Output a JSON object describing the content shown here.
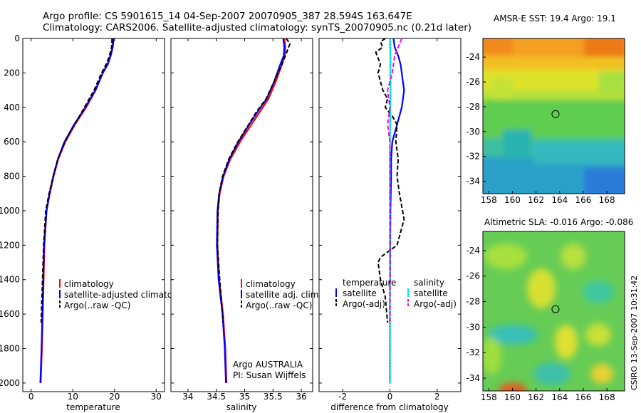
{
  "figure": {
    "title_line1": "Argo profile: CS 5901615_14 04-Sep-2007 20070905_387 28.594S 163.647E",
    "title_line2": "Climatology: CARS2006. Satellite-adjusted climatology: synTS_20070905.nc (0.21d later)",
    "credit": "CSIRO 13-Sep-2007 10:31:42"
  },
  "colors": {
    "climatology": "#ff0000",
    "satellite": "#0000ff",
    "argo": "#000000",
    "satellite_diff_salinity": "#00e5e5",
    "argo_diff_salinity": "#ff00ff"
  },
  "chart_data": [
    {
      "type": "line",
      "id": "temperature",
      "xlabel": "temperature",
      "ylabel": "",
      "xlim": [
        -2,
        32
      ],
      "ylim": [
        2050,
        0
      ],
      "xticks": [
        0,
        10,
        20,
        30
      ],
      "yticks": [
        0,
        200,
        400,
        600,
        800,
        1000,
        1200,
        1400,
        1600,
        1800,
        2000
      ],
      "legend": {
        "position": "bottom-right",
        "entries": [
          "climatology",
          "satellite-adjusted climatology",
          "Argo(..raw -QC)"
        ]
      },
      "series": [
        {
          "name": "climatology",
          "color": "#ff0000",
          "style": "solid",
          "x": [
            19.6,
            19.5,
            19.0,
            18.3,
            17.2,
            15.5,
            13.2,
            10.5,
            8.2,
            6.5,
            5.4,
            4.5,
            3.7,
            3.2,
            2.9,
            2.6,
            2.3
          ],
          "y": [
            0,
            50,
            100,
            150,
            200,
            300,
            400,
            500,
            600,
            700,
            800,
            900,
            1000,
            1200,
            1500,
            1800,
            2000
          ]
        },
        {
          "name": "satellite-adjusted climatology",
          "color": "#0000ff",
          "style": "solid",
          "x": [
            19.8,
            19.6,
            19.1,
            18.4,
            17.2,
            15.4,
            13.0,
            10.3,
            8.0,
            6.4,
            5.3,
            4.4,
            3.7,
            3.1,
            2.8,
            2.5,
            2.2
          ],
          "y": [
            0,
            50,
            100,
            150,
            200,
            300,
            400,
            500,
            600,
            700,
            800,
            900,
            1000,
            1200,
            1500,
            1800,
            2000
          ]
        },
        {
          "name": "Argo(..raw -QC)",
          "color": "#000000",
          "style": "dash",
          "x": [
            19.4,
            19.3,
            18.8,
            18.0,
            16.9,
            15.1,
            12.8,
            10.4,
            8.1,
            6.4,
            5.3,
            4.3,
            3.5,
            3.0,
            2.6,
            2.4
          ],
          "y": [
            0,
            50,
            100,
            150,
            200,
            300,
            400,
            500,
            600,
            700,
            800,
            900,
            1000,
            1200,
            1500,
            1650
          ]
        }
      ]
    },
    {
      "type": "line",
      "id": "salinity",
      "xlabel": "salinity",
      "xlim": [
        33.7,
        36.2
      ],
      "ylim": [
        2050,
        0
      ],
      "xticks": [
        34,
        34.5,
        35,
        35.5,
        36
      ],
      "legend": {
        "position": "bottom-right",
        "entries": [
          "climatology",
          "satellite adj. clim.",
          "Argo(..raw -QC)"
        ]
      },
      "annotation_lines": [
        "Argo AUSTRALIA",
        "PI: Susan Wijffels"
      ],
      "series": [
        {
          "name": "climatology",
          "color": "#ff0000",
          "style": "solid",
          "x": [
            35.7,
            35.72,
            35.71,
            35.66,
            35.55,
            35.42,
            35.28,
            35.12,
            34.92,
            34.75,
            34.63,
            34.56,
            34.53,
            34.52,
            34.55,
            34.62,
            34.66,
            34.68
          ],
          "y": [
            0,
            50,
            100,
            150,
            250,
            350,
            420,
            500,
            600,
            700,
            800,
            900,
            1000,
            1200,
            1400,
            1600,
            1800,
            2000
          ]
        },
        {
          "name": "satellite adj. clim.",
          "color": "#0000ff",
          "style": "solid",
          "x": [
            35.68,
            35.7,
            35.69,
            35.63,
            35.52,
            35.39,
            35.24,
            35.08,
            34.89,
            34.73,
            34.62,
            34.55,
            34.52,
            34.51,
            34.54,
            34.61,
            34.65,
            34.67
          ],
          "y": [
            0,
            50,
            100,
            150,
            250,
            350,
            420,
            500,
            600,
            700,
            800,
            900,
            1000,
            1200,
            1400,
            1600,
            1800,
            2000
          ]
        },
        {
          "name": "Argo(..raw -QC)",
          "color": "#000000",
          "style": "dash",
          "x": [
            35.73,
            35.8,
            35.72,
            35.66,
            35.52,
            35.38,
            35.22,
            35.07,
            34.88,
            34.72,
            34.61,
            34.55,
            34.53,
            34.52,
            34.56,
            34.62
          ],
          "y": [
            0,
            30,
            100,
            150,
            250,
            350,
            420,
            500,
            600,
            700,
            800,
            900,
            1000,
            1200,
            1400,
            1650
          ]
        }
      ]
    },
    {
      "type": "line",
      "id": "difference",
      "xlabel": "difference from climatology",
      "xlim": [
        -3,
        3
      ],
      "ylim": [
        2050,
        0
      ],
      "xticks": [
        -2,
        0,
        2
      ],
      "legend": {
        "position": "bottom",
        "groups": [
          {
            "title": "temperature",
            "entries": [
              "satellite",
              "Argo(-adj)"
            ]
          },
          {
            "title": "salinity",
            "entries": [
              "satellite",
              "Argo(-adj)"
            ]
          }
        ]
      },
      "series": [
        {
          "name": "satellite",
          "group": "temperature",
          "color": "#0000ff",
          "style": "solid",
          "x": [
            0.15,
            0.2,
            0.35,
            0.45,
            0.5,
            0.55,
            0.6,
            0.5,
            0.3,
            0.1,
            0.05,
            0.05,
            0.02,
            0.0,
            0.0
          ],
          "y": [
            0,
            50,
            100,
            150,
            200,
            250,
            300,
            400,
            500,
            600,
            700,
            800,
            1000,
            1500,
            2000
          ]
        },
        {
          "name": "Argo(-adj)",
          "group": "temperature",
          "color": "#000000",
          "style": "dash",
          "x": [
            -0.2,
            -0.4,
            -0.3,
            -0.6,
            -0.4,
            -0.5,
            -0.3,
            -0.1,
            -0.2,
            0.1,
            0.3,
            0.25,
            0.35,
            0.3,
            0.4,
            0.6,
            0.3,
            -0.4,
            -0.5,
            -0.4,
            -0.2,
            -0.1
          ],
          "y": [
            0,
            20,
            50,
            80,
            150,
            200,
            300,
            350,
            400,
            450,
            500,
            600,
            700,
            800,
            900,
            1050,
            1200,
            1270,
            1300,
            1400,
            1500,
            1650
          ]
        },
        {
          "name": "satellite",
          "group": "salinity",
          "color": "#00e5e5",
          "style": "solid",
          "x": [
            0.0,
            0.02,
            0.02,
            0.03,
            0.02,
            0.0,
            0.0,
            0.0,
            0.0
          ],
          "y": [
            0,
            100,
            200,
            300,
            400,
            600,
            800,
            1200,
            2000
          ]
        },
        {
          "name": "Argo(-adj)",
          "group": "salinity",
          "color": "#ff00ff",
          "style": "dash",
          "x": [
            0.5,
            0.35,
            0.2,
            0.1,
            -0.1,
            0.0,
            -0.1,
            0.0,
            0.0,
            0.0,
            0.0,
            0.0
          ],
          "y": [
            0,
            50,
            100,
            200,
            300,
            400,
            500,
            600,
            800,
            1000,
            1400,
            1650
          ]
        }
      ]
    },
    {
      "type": "heatmap",
      "id": "sst",
      "title": "AMSR-E SST: 19.4 Argo: 19.1",
      "xlim": [
        157.5,
        169.5
      ],
      "ylim": [
        -35,
        -22.5
      ],
      "xticks": [
        158,
        160,
        162,
        164,
        166,
        168
      ],
      "yticks": [
        -24,
        -26,
        -28,
        -30,
        -32,
        -34
      ],
      "marker": {
        "lon": 163.647,
        "lat": -28.594
      }
    },
    {
      "type": "heatmap",
      "id": "sla",
      "title": "Altimetric SLA: -0.016 Argo: -0.086",
      "xlim": [
        157.5,
        169.5
      ],
      "ylim": [
        -35,
        -22.5
      ],
      "xticks": [
        158,
        160,
        162,
        164,
        166,
        168
      ],
      "yticks": [
        -24,
        -26,
        -28,
        -30,
        -32,
        -34
      ],
      "marker": {
        "lon": 163.647,
        "lat": -28.594
      }
    }
  ]
}
